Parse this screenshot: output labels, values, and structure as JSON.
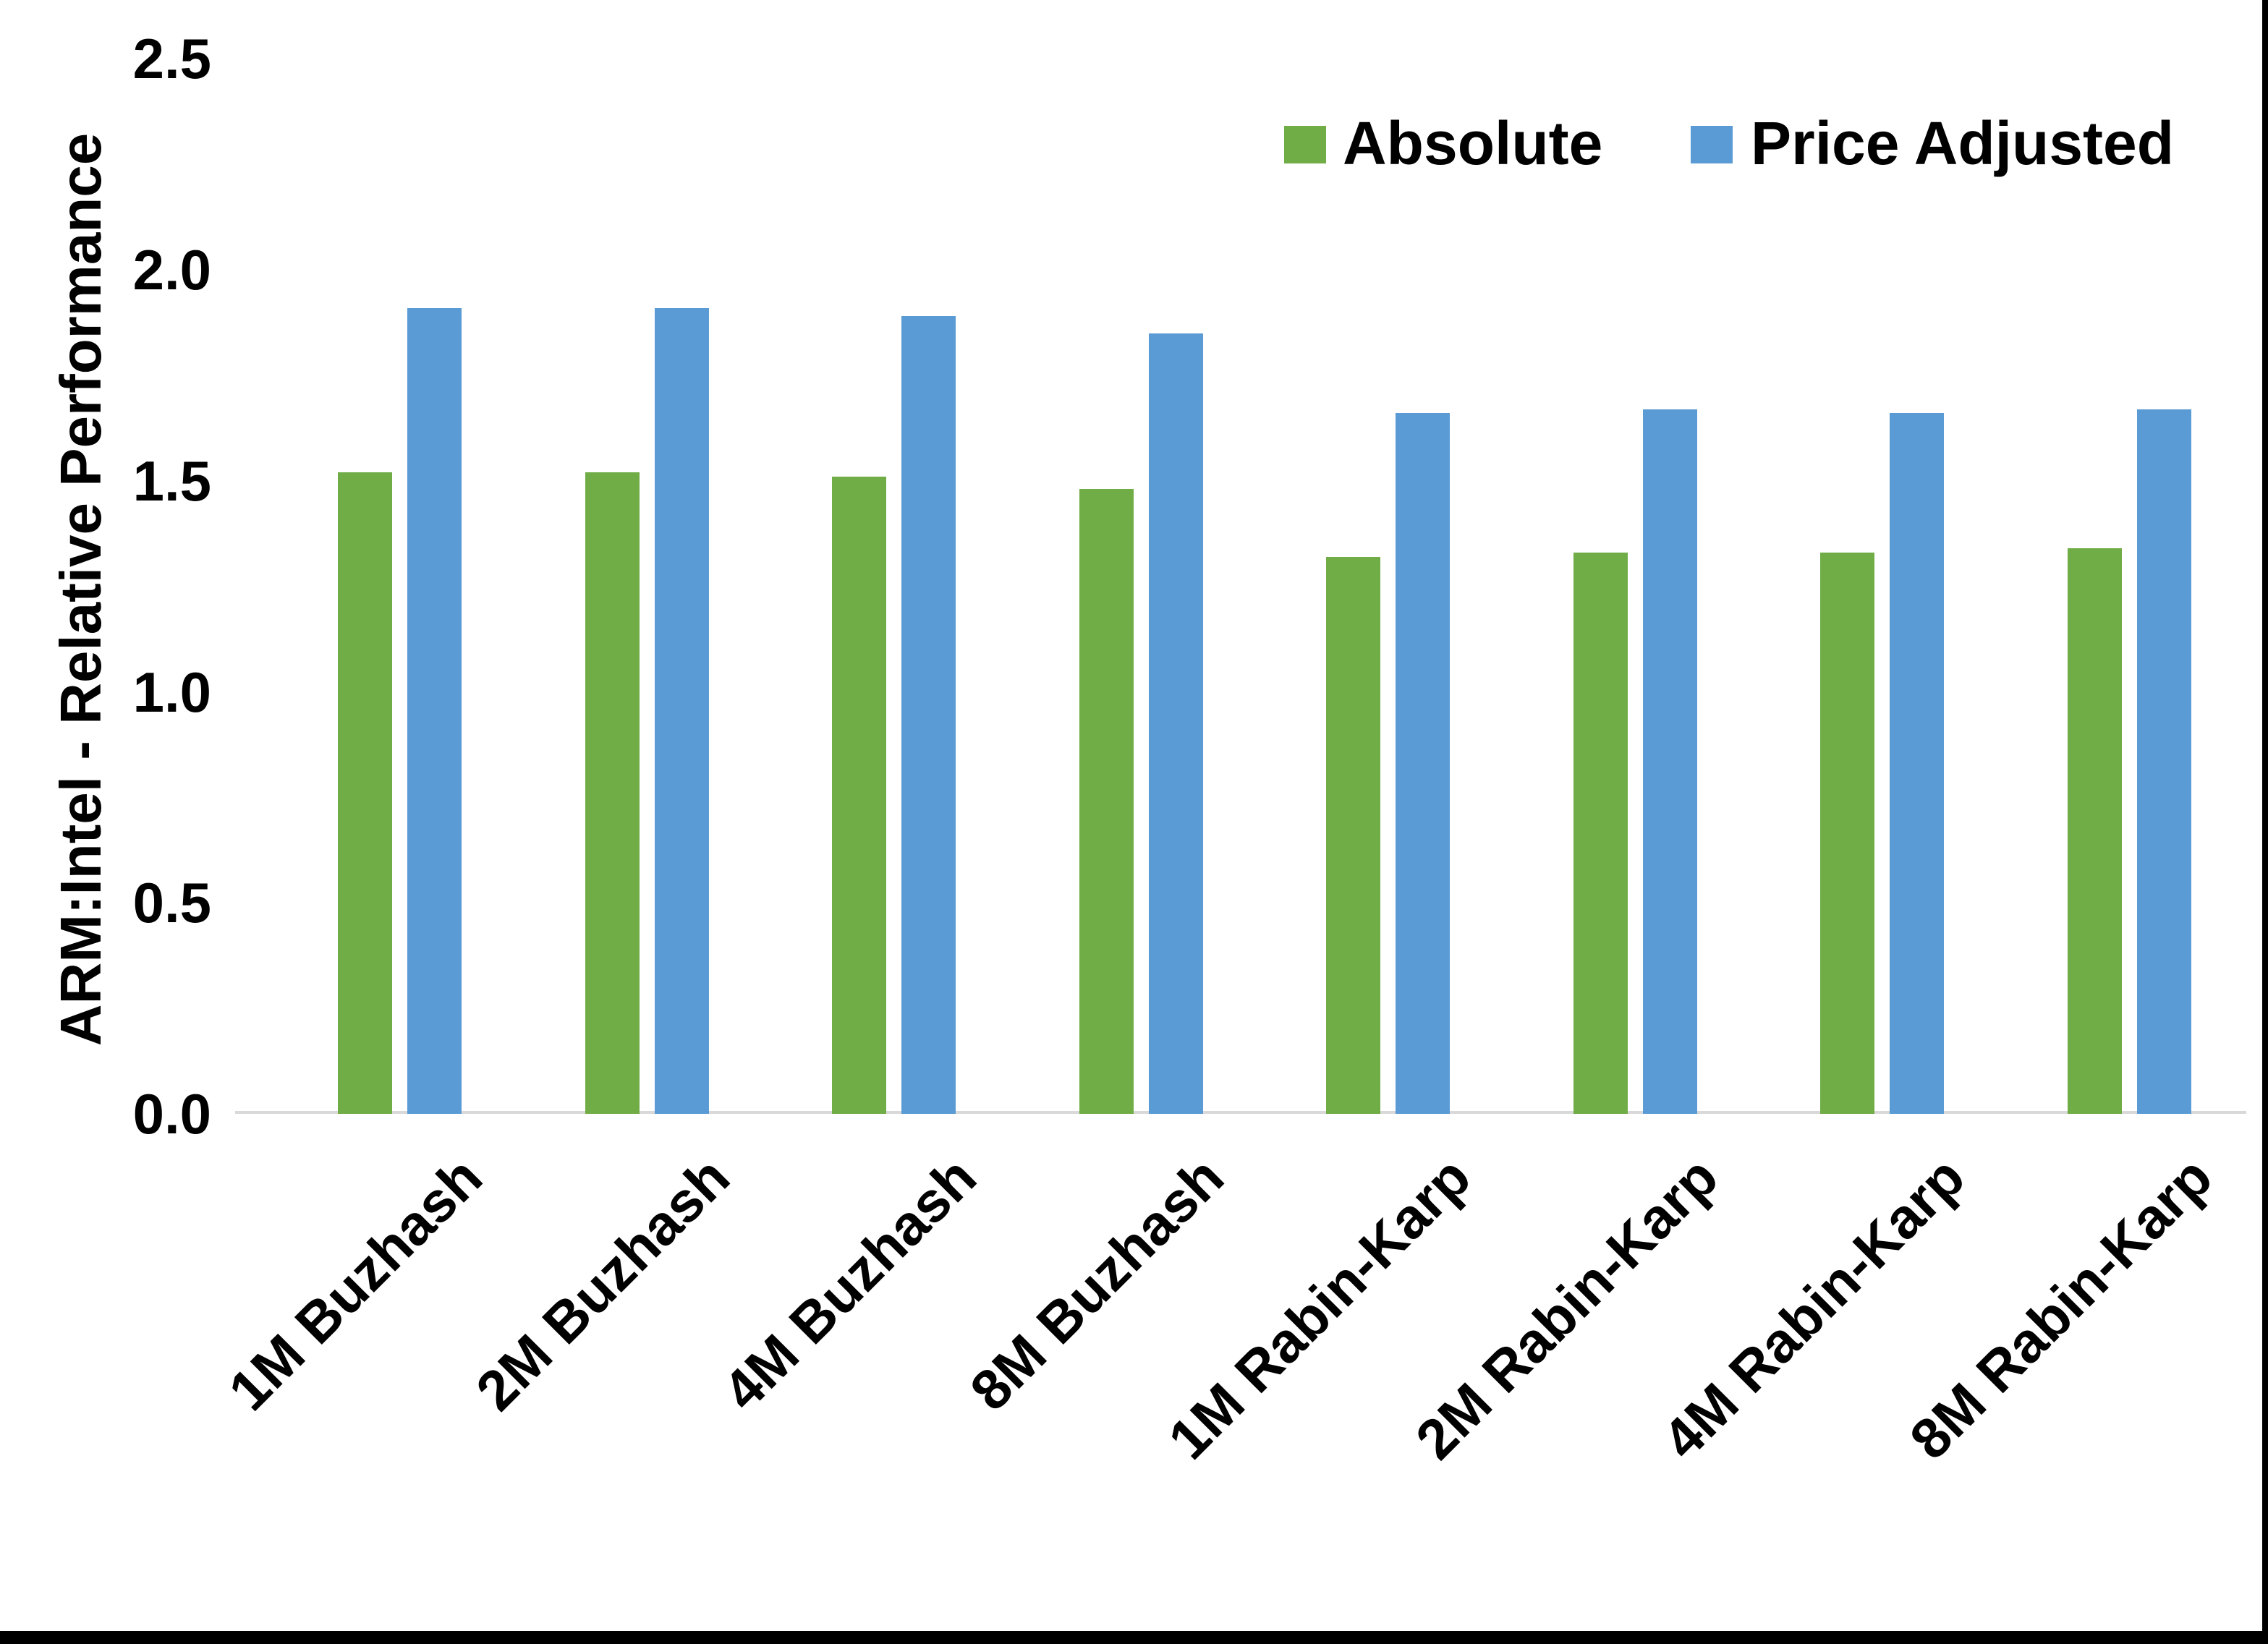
{
  "chart_data": {
    "type": "bar",
    "title": "",
    "xlabel": "",
    "ylabel": "ARM:Intel - Relative Performance",
    "categories": [
      "1M Buzhash",
      "2M Buzhash",
      "4M Buzhash",
      "8M Buzhash",
      "1M Rabin-Karp",
      "2M Rabin-Karp",
      "4M Rabin-Karp",
      "8M Rabin-Karp"
    ],
    "series": [
      {
        "name": "Absolute",
        "color": "#70AD47",
        "values": [
          1.52,
          1.52,
          1.51,
          1.48,
          1.32,
          1.33,
          1.33,
          1.34
        ]
      },
      {
        "name": "Price Adjusted",
        "color": "#5B9BD5",
        "values": [
          1.91,
          1.91,
          1.89,
          1.85,
          1.66,
          1.67,
          1.66,
          1.67
        ]
      }
    ],
    "ylim": [
      0,
      2.5
    ],
    "ytick_step": 0.5,
    "ytick_labels": [
      "0.0",
      "0.5",
      "1.0",
      "1.5",
      "2.0",
      "2.5"
    ],
    "grid": false,
    "legend_position": "top-right",
    "axis_line_color": "#D9D9D9",
    "text_color": "#000000",
    "frame_border_color": "#000000"
  }
}
